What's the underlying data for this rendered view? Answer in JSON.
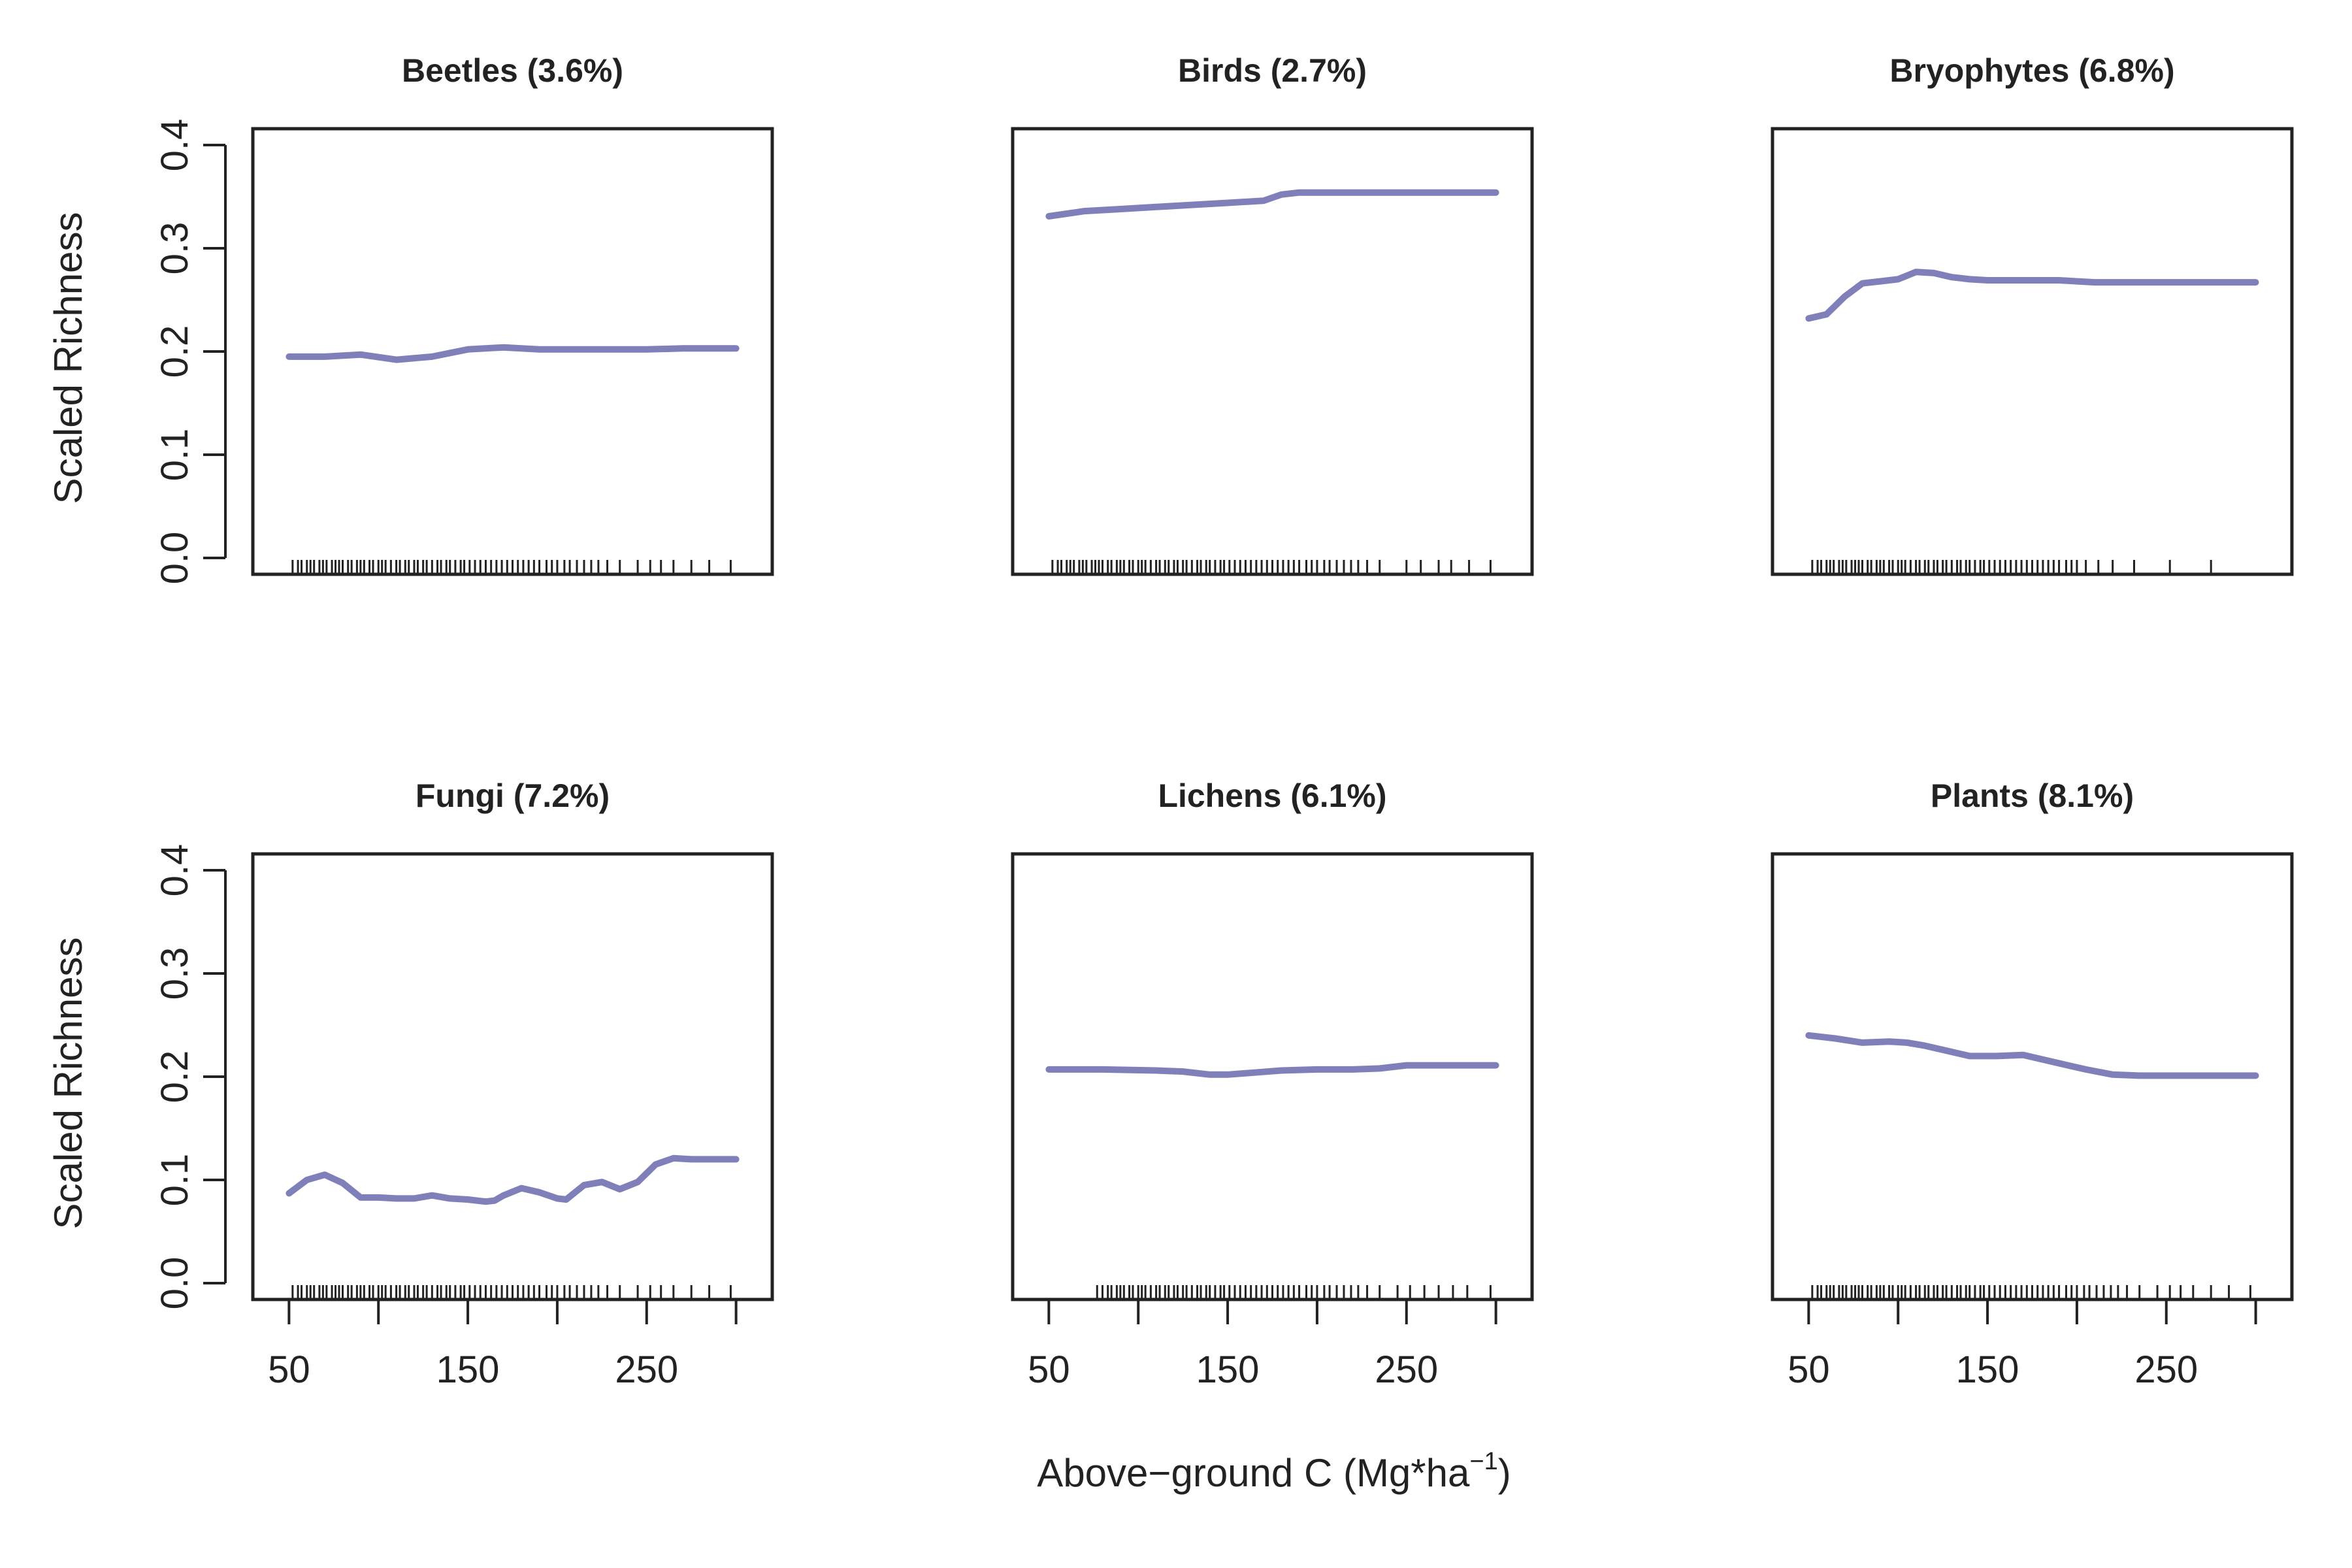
{
  "chart_data": [
    {
      "type": "line",
      "title": "Beetles (3.6%)",
      "ylabel": "Scaled Richness",
      "xlim": [
        40,
        310
      ],
      "ylim": [
        0,
        0.4
      ],
      "yticks": [
        "0.0",
        "0.1",
        "0.2",
        "0.3",
        "0.4"
      ],
      "xticks": [],
      "x": [
        50,
        70,
        90,
        110,
        130,
        150,
        170,
        190,
        210,
        230,
        250,
        270,
        300
      ],
      "series": [
        {
          "values": [
            0.195,
            0.195,
            0.197,
            0.192,
            0.195,
            0.202,
            0.204,
            0.202,
            0.202,
            0.202,
            0.202,
            0.203,
            0.203
          ]
        }
      ],
      "rug": [
        52,
        55,
        57,
        60,
        62,
        64,
        67,
        69,
        71,
        74,
        76,
        78,
        80,
        83,
        85,
        88,
        90,
        92,
        95,
        97,
        100,
        102,
        104,
        107,
        110,
        112,
        115,
        117,
        120,
        122,
        125,
        127,
        130,
        133,
        135,
        138,
        140,
        143,
        146,
        148,
        151,
        154,
        157,
        160,
        163,
        166,
        169,
        172,
        175,
        178,
        181,
        184,
        187,
        190,
        194,
        197,
        200,
        204,
        207,
        211,
        215,
        219,
        223,
        228,
        235,
        245,
        252,
        258,
        265,
        275,
        285,
        297
      ]
    },
    {
      "type": "line",
      "title": "Birds (2.7%)",
      "ylabel": "",
      "xlim": [
        40,
        310
      ],
      "ylim": [
        0,
        0.4
      ],
      "yticks": [],
      "xticks": [],
      "x": [
        50,
        70,
        90,
        110,
        130,
        150,
        170,
        180,
        190,
        210,
        230,
        250,
        270,
        300
      ],
      "series": [
        {
          "values": [
            0.331,
            0.336,
            0.338,
            0.34,
            0.342,
            0.344,
            0.346,
            0.352,
            0.354,
            0.354,
            0.354,
            0.354,
            0.354,
            0.354
          ]
        }
      ],
      "rug": [
        52,
        55,
        57,
        60,
        62,
        64,
        67,
        69,
        71,
        74,
        76,
        78,
        80,
        83,
        85,
        88,
        90,
        92,
        95,
        97,
        100,
        102,
        104,
        107,
        110,
        112,
        115,
        117,
        120,
        122,
        125,
        127,
        130,
        133,
        135,
        138,
        140,
        143,
        146,
        148,
        151,
        154,
        157,
        160,
        163,
        166,
        169,
        172,
        175,
        178,
        181,
        184,
        187,
        190,
        194,
        197,
        200,
        204,
        207,
        211,
        215,
        219,
        223,
        228,
        235,
        250,
        258,
        268,
        275,
        285,
        297
      ]
    },
    {
      "type": "line",
      "title": "Bryophytes (6.8%)",
      "ylabel": "",
      "xlim": [
        40,
        310
      ],
      "ylim": [
        0,
        0.4
      ],
      "yticks": [],
      "xticks": [],
      "x": [
        50,
        60,
        70,
        80,
        90,
        100,
        110,
        120,
        130,
        140,
        150,
        170,
        190,
        210,
        230,
        250,
        300
      ],
      "series": [
        {
          "values": [
            0.232,
            0.236,
            0.253,
            0.266,
            0.268,
            0.27,
            0.277,
            0.276,
            0.272,
            0.27,
            0.269,
            0.269,
            0.269,
            0.267,
            0.267,
            0.267,
            0.267
          ]
        }
      ],
      "rug": [
        52,
        55,
        57,
        60,
        62,
        64,
        67,
        69,
        71,
        74,
        76,
        78,
        80,
        83,
        85,
        88,
        90,
        92,
        95,
        97,
        100,
        102,
        104,
        107,
        110,
        112,
        115,
        117,
        120,
        122,
        125,
        127,
        130,
        133,
        135,
        138,
        140,
        143,
        146,
        148,
        151,
        154,
        157,
        160,
        163,
        166,
        169,
        172,
        175,
        178,
        181,
        184,
        187,
        190,
        194,
        197,
        200,
        205,
        212,
        220,
        232,
        252,
        275
      ]
    },
    {
      "type": "line",
      "title": "Fungi (7.2%)",
      "ylabel": "Scaled Richness",
      "xlim": [
        40,
        310
      ],
      "ylim": [
        0,
        0.4
      ],
      "yticks": [
        "0.0",
        "0.1",
        "0.2",
        "0.3",
        "0.4"
      ],
      "xticks": [
        "50",
        "150",
        "250"
      ],
      "x": [
        50,
        60,
        70,
        80,
        90,
        100,
        110,
        120,
        130,
        140,
        150,
        160,
        165,
        170,
        180,
        190,
        200,
        205,
        215,
        225,
        235,
        245,
        255,
        265,
        275,
        300
      ],
      "series": [
        {
          "values": [
            0.087,
            0.1,
            0.105,
            0.097,
            0.083,
            0.083,
            0.082,
            0.082,
            0.085,
            0.082,
            0.081,
            0.079,
            0.08,
            0.085,
            0.092,
            0.088,
            0.082,
            0.081,
            0.095,
            0.098,
            0.091,
            0.098,
            0.115,
            0.121,
            0.12,
            0.12
          ]
        }
      ],
      "rug": [
        52,
        55,
        57,
        60,
        62,
        64,
        67,
        69,
        71,
        74,
        76,
        78,
        80,
        83,
        85,
        88,
        90,
        92,
        95,
        97,
        100,
        102,
        104,
        107,
        110,
        112,
        115,
        117,
        120,
        122,
        125,
        127,
        130,
        133,
        135,
        138,
        140,
        143,
        146,
        148,
        151,
        154,
        157,
        160,
        163,
        166,
        169,
        172,
        175,
        178,
        181,
        184,
        187,
        190,
        194,
        197,
        200,
        204,
        207,
        211,
        215,
        219,
        223,
        228,
        235,
        245,
        252,
        258,
        265,
        275,
        285,
        297
      ]
    },
    {
      "type": "line",
      "title": "Lichens (6.1%)",
      "ylabel": "",
      "xlim": [
        40,
        310
      ],
      "ylim": [
        0,
        0.4
      ],
      "yticks": [],
      "xticks": [
        "50",
        "150",
        "250"
      ],
      "x": [
        50,
        80,
        110,
        125,
        140,
        150,
        165,
        180,
        200,
        220,
        235,
        250,
        270,
        300
      ],
      "series": [
        {
          "values": [
            0.207,
            0.207,
            0.206,
            0.205,
            0.202,
            0.202,
            0.204,
            0.206,
            0.207,
            0.207,
            0.208,
            0.211,
            0.211,
            0.211
          ]
        }
      ],
      "rug": [
        77,
        80,
        83,
        85,
        88,
        90,
        92,
        95,
        97,
        100,
        102,
        104,
        107,
        110,
        112,
        115,
        117,
        120,
        122,
        125,
        127,
        130,
        133,
        135,
        138,
        140,
        143,
        146,
        148,
        151,
        154,
        157,
        160,
        163,
        166,
        169,
        172,
        175,
        178,
        181,
        184,
        187,
        190,
        194,
        197,
        200,
        204,
        207,
        211,
        215,
        219,
        223,
        228,
        235,
        245,
        252,
        260,
        268,
        276,
        284,
        297
      ]
    },
    {
      "type": "line",
      "title": "Plants (8.1%)",
      "ylabel": "",
      "xlim": [
        40,
        310
      ],
      "ylim": [
        0,
        0.4
      ],
      "yticks": [],
      "xticks": [
        "50",
        "150",
        "250"
      ],
      "x": [
        50,
        65,
        80,
        95,
        105,
        115,
        125,
        140,
        155,
        170,
        180,
        190,
        205,
        220,
        235,
        250,
        270,
        300
      ],
      "series": [
        {
          "values": [
            0.24,
            0.237,
            0.233,
            0.234,
            0.233,
            0.23,
            0.226,
            0.22,
            0.22,
            0.221,
            0.217,
            0.213,
            0.207,
            0.202,
            0.201,
            0.201,
            0.201,
            0.201
          ]
        }
      ],
      "rug": [
        52,
        55,
        57,
        60,
        62,
        64,
        67,
        69,
        71,
        74,
        76,
        78,
        80,
        83,
        85,
        88,
        90,
        92,
        95,
        97,
        100,
        102,
        104,
        107,
        110,
        112,
        115,
        117,
        120,
        122,
        125,
        127,
        130,
        133,
        135,
        138,
        140,
        143,
        146,
        148,
        151,
        154,
        157,
        160,
        163,
        166,
        169,
        172,
        175,
        178,
        181,
        184,
        187,
        190,
        194,
        197,
        200,
        204,
        207,
        211,
        215,
        219,
        223,
        228,
        235,
        245,
        252,
        258,
        265,
        275,
        285,
        297
      ]
    }
  ],
  "xlabel": {
    "main": "Above−ground C (Mg*ha",
    "sup": "−1",
    "close": ")"
  },
  "colors": {
    "line": "#7F7FBA",
    "axis": "#222222"
  }
}
